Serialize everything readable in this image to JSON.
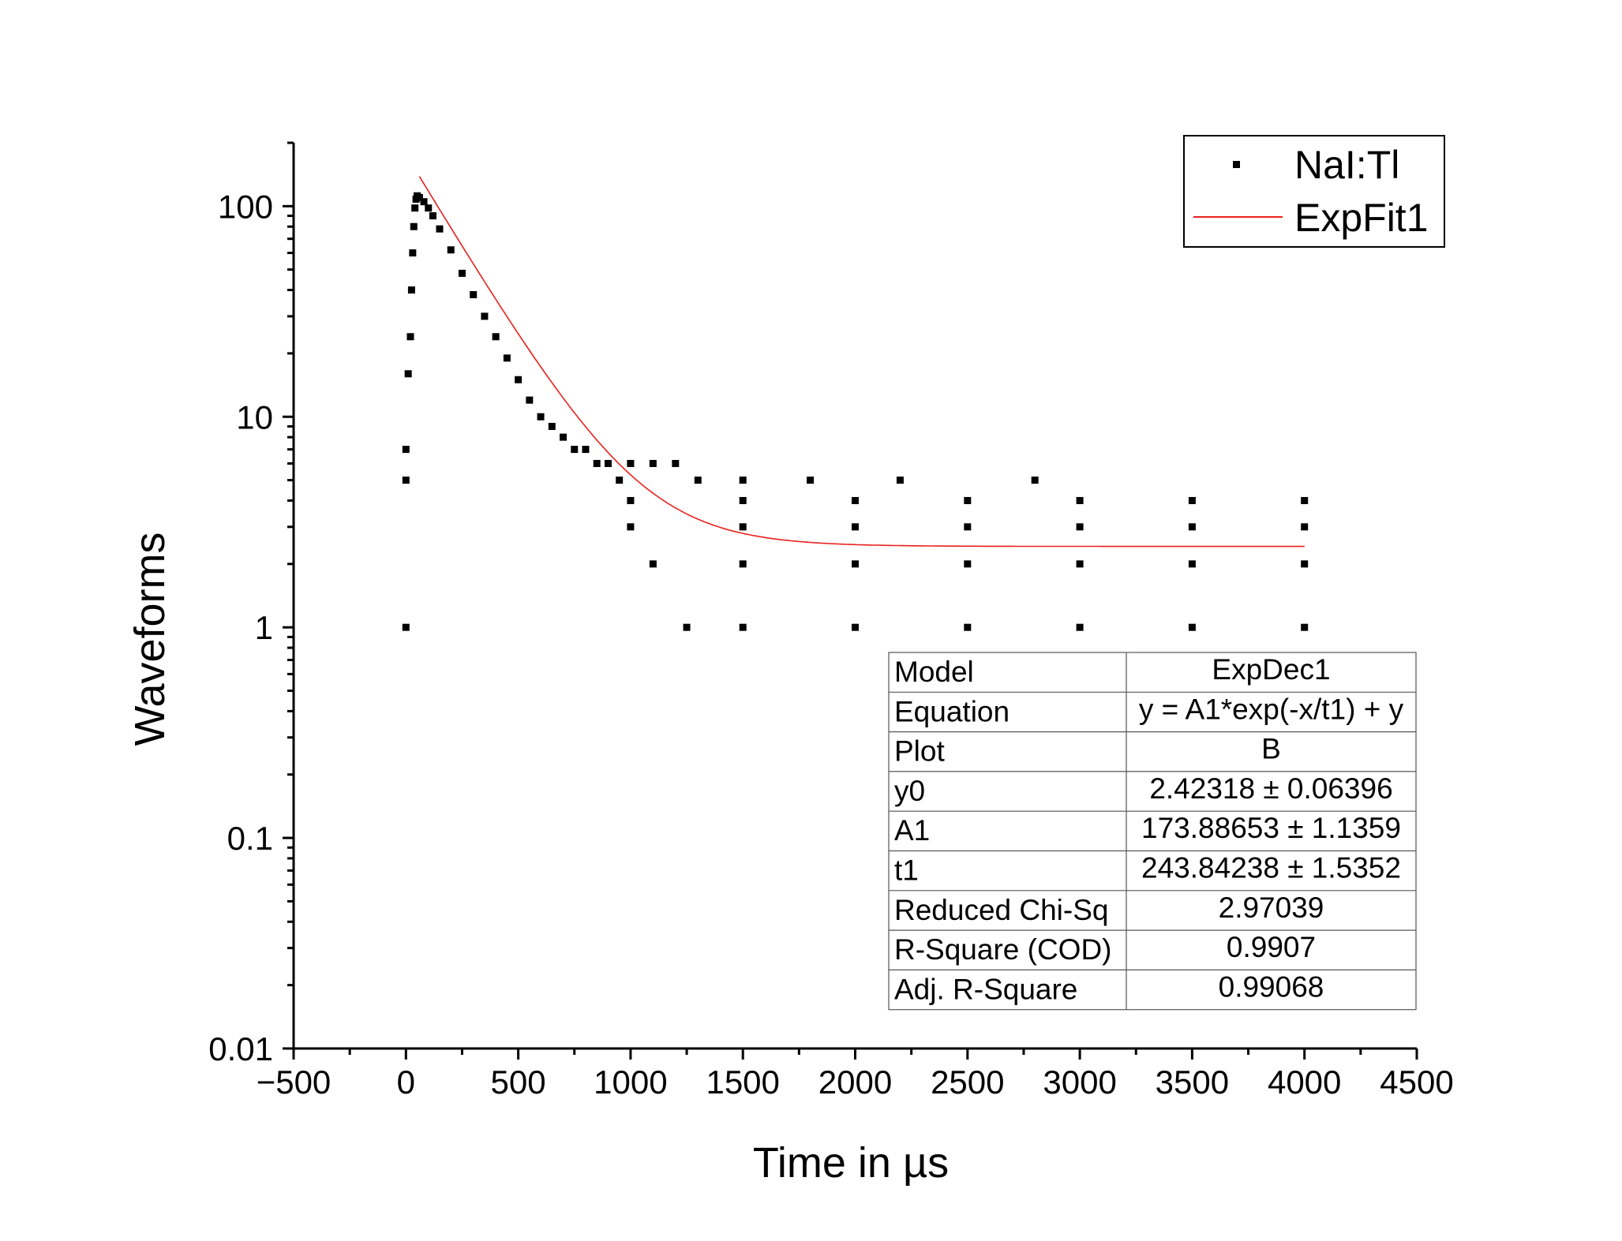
{
  "chart_data": {
    "type": "scatter",
    "xlabel": "Time in µs",
    "ylabel": "Waveforms",
    "xlim": [
      -500,
      4500
    ],
    "ylim": [
      0.01,
      200
    ],
    "y_scale": "log",
    "x_ticks": [
      "−500",
      "0",
      "500",
      "1000",
      "1500",
      "2000",
      "2500",
      "3000",
      "3500",
      "4000",
      "4500"
    ],
    "y_ticks": [
      "0.01",
      "0.1",
      "1",
      "10",
      "100"
    ],
    "legend": {
      "position": "top-right",
      "entries": [
        "NaI:Tl",
        "ExpFit1"
      ]
    },
    "series": [
      {
        "name": "NaI:Tl",
        "kind": "scatter",
        "color": "#000000",
        "x": [
          0,
          0,
          0,
          10,
          20,
          25,
          30,
          35,
          40,
          45,
          50,
          60,
          80,
          100,
          120,
          150,
          200,
          250,
          300,
          350,
          400,
          450,
          500,
          550,
          600,
          650,
          700,
          750,
          800,
          850,
          900,
          950,
          1000,
          1100,
          1200,
          1300,
          1500,
          1800,
          2200,
          2800,
          1000,
          1500,
          2000,
          2500,
          3000,
          3500,
          4000,
          1000,
          1500,
          2000,
          2500,
          3000,
          3500,
          4000,
          1100,
          1500,
          2000,
          2500,
          3000,
          3500,
          4000,
          1250,
          1500,
          2000,
          2500,
          3000,
          3500,
          4000
        ],
        "y": [
          1,
          5,
          7,
          16,
          24,
          40,
          60,
          80,
          98,
          108,
          112,
          110,
          105,
          98,
          90,
          78,
          62,
          48,
          38,
          30,
          24,
          19,
          15,
          12,
          10,
          9,
          8,
          7,
          7,
          6,
          6,
          5,
          6,
          6,
          6,
          5,
          5,
          5,
          5,
          5,
          4,
          4,
          4,
          4,
          4,
          4,
          4,
          3,
          3,
          3,
          3,
          3,
          3,
          3,
          2,
          2,
          2,
          2,
          2,
          2,
          2,
          1,
          1,
          1,
          1,
          1,
          1,
          1
        ]
      },
      {
        "name": "ExpFit1",
        "kind": "line",
        "color": "#e8211d",
        "model": {
          "y0": 2.42318,
          "A1": 173.88653,
          "t1": 243.84238
        },
        "x_range": [
          60,
          4000
        ]
      }
    ],
    "fit_table": [
      {
        "label": "Model",
        "value": "ExpDec1"
      },
      {
        "label": "Equation",
        "value": "y = A1*exp(-x/t1) + y"
      },
      {
        "label": "Plot",
        "value": "B"
      },
      {
        "label": "y0",
        "value": "2.42318 ± 0.06396"
      },
      {
        "label": "A1",
        "value": "173.88653 ± 1.1359"
      },
      {
        "label": "t1",
        "value": "243.84238 ± 1.5352"
      },
      {
        "label": "Reduced Chi-Sq",
        "value": "2.97039"
      },
      {
        "label": "R-Square (COD)",
        "value": "0.9907"
      },
      {
        "label": "Adj. R-Square",
        "value": "0.99068"
      }
    ]
  }
}
